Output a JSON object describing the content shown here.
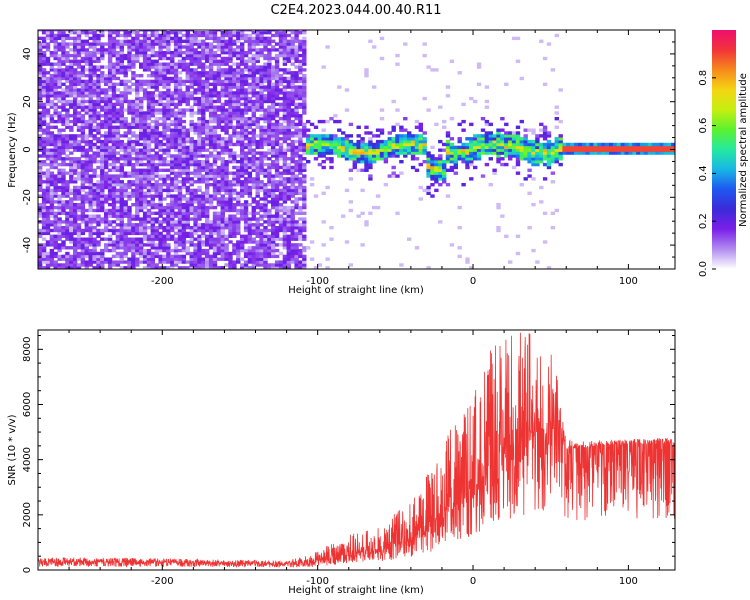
{
  "title": "C2E4.2023.044.00.40.R11",
  "chart_data": [
    {
      "type": "heatmap",
      "xlabel": "Height of straight line (km)",
      "ylabel": "Frequency (Hz)",
      "xlim": [
        -280,
        130
      ],
      "ylim": [
        -50,
        50
      ],
      "x_ticks": [
        -200,
        -100,
        0,
        100
      ],
      "y_ticks": [
        -40,
        -20,
        0,
        20,
        40
      ],
      "colorbar": {
        "label": "Normalized spectral amplitude",
        "range": [
          0,
          1
        ],
        "ticks": [
          0.0,
          0.2,
          0.4,
          0.6,
          0.8
        ],
        "colors": [
          "#ffffff",
          "#b18cf0",
          "#7a1fe8",
          "#3b2ad8",
          "#1f57f0",
          "#17b7e6",
          "#23e9a0",
          "#5cf22e",
          "#c6ef11",
          "#f4d512",
          "#f78a1b",
          "#f2333a",
          "#ef0e6e"
        ]
      },
      "regions": [
        {
          "x_range": [
            -280,
            -108
          ],
          "description": "broadband noise",
          "mean_amplitude": 0.15
        },
        {
          "x_range": [
            -108,
            57
          ],
          "description": "signal band near 0 Hz with fluctuations",
          "peak_amplitude": 0.8
        },
        {
          "x_range": [
            57,
            130
          ],
          "description": "steady narrow line at 0 Hz",
          "amplitude": 0.9
        }
      ]
    },
    {
      "type": "line",
      "xlabel": "Height of straight line (km)",
      "ylabel": "SNR (10 * v/v)",
      "xlim": [
        -280,
        130
      ],
      "ylim": [
        0,
        8700
      ],
      "x_ticks": [
        -200,
        -100,
        0,
        100
      ],
      "y_ticks": [
        0,
        2000,
        4000,
        6000,
        8000
      ],
      "series": [
        {
          "color": "#ee3333",
          "x": [
            -280,
            -240,
            -200,
            -160,
            -120,
            -100,
            -90,
            -80,
            -70,
            -60,
            -50,
            -40,
            -30,
            -20,
            -10,
            0,
            10,
            20,
            30,
            40,
            50,
            57,
            60,
            65,
            80,
            100,
            130
          ],
          "y": [
            300,
            300,
            280,
            250,
            220,
            300,
            450,
            600,
            650,
            750,
            900,
            1100,
            1500,
            2000,
            2500,
            3000,
            3600,
            4300,
            4800,
            5000,
            5000,
            4800,
            4500,
            4400,
            4500,
            4550,
            4600
          ],
          "upper_envelope": [
            450,
            450,
            420,
            380,
            330,
            700,
            1000,
            1300,
            1400,
            1600,
            2100,
            2600,
            3500,
            4800,
            5600,
            6400,
            8000,
            8300,
            8700,
            8500,
            8000,
            6200,
            4800,
            4650,
            4700,
            4750,
            4800
          ]
        }
      ]
    }
  ]
}
